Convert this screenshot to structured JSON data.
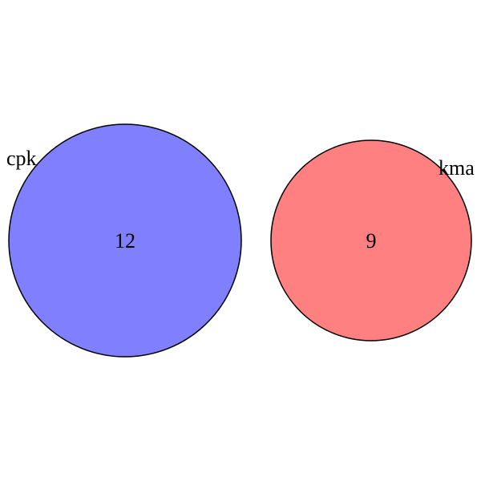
{
  "diagram": {
    "type": "venn",
    "sets": [
      {
        "name": "cpk",
        "count": "12",
        "color": "#8080ff"
      },
      {
        "name": "kma",
        "count": "9",
        "color": "#ff8080"
      }
    ],
    "outline_color": "#000000"
  }
}
